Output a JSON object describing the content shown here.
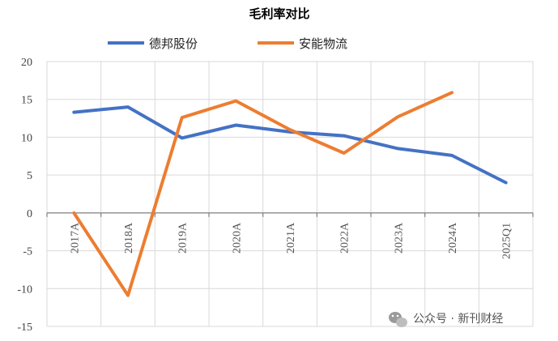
{
  "chart_data": {
    "type": "line",
    "title": "毛利率对比",
    "categories": [
      "2017A",
      "2018A",
      "2019A",
      "2020A",
      "2021A",
      "2022A",
      "2023A",
      "2024A",
      "2025Q1"
    ],
    "series": [
      {
        "name": "德邦股份",
        "color": "#4472C4",
        "values": [
          13.3,
          14.0,
          9.9,
          11.6,
          10.7,
          10.2,
          8.5,
          7.6,
          4.0
        ]
      },
      {
        "name": "安能物流",
        "color": "#ED7D31",
        "values": [
          0.0,
          -10.9,
          12.6,
          14.8,
          11.0,
          7.9,
          12.7,
          15.9,
          null
        ]
      }
    ],
    "yticks": [
      "20",
      "15",
      "10",
      "5",
      "0",
      "-5",
      "-10",
      "-15"
    ],
    "ylim": [
      -15,
      20
    ],
    "grid": true,
    "legend_position": "top"
  },
  "watermark": {
    "text": "公众号 · 新刊财经",
    "icon": "wechat-icon"
  }
}
